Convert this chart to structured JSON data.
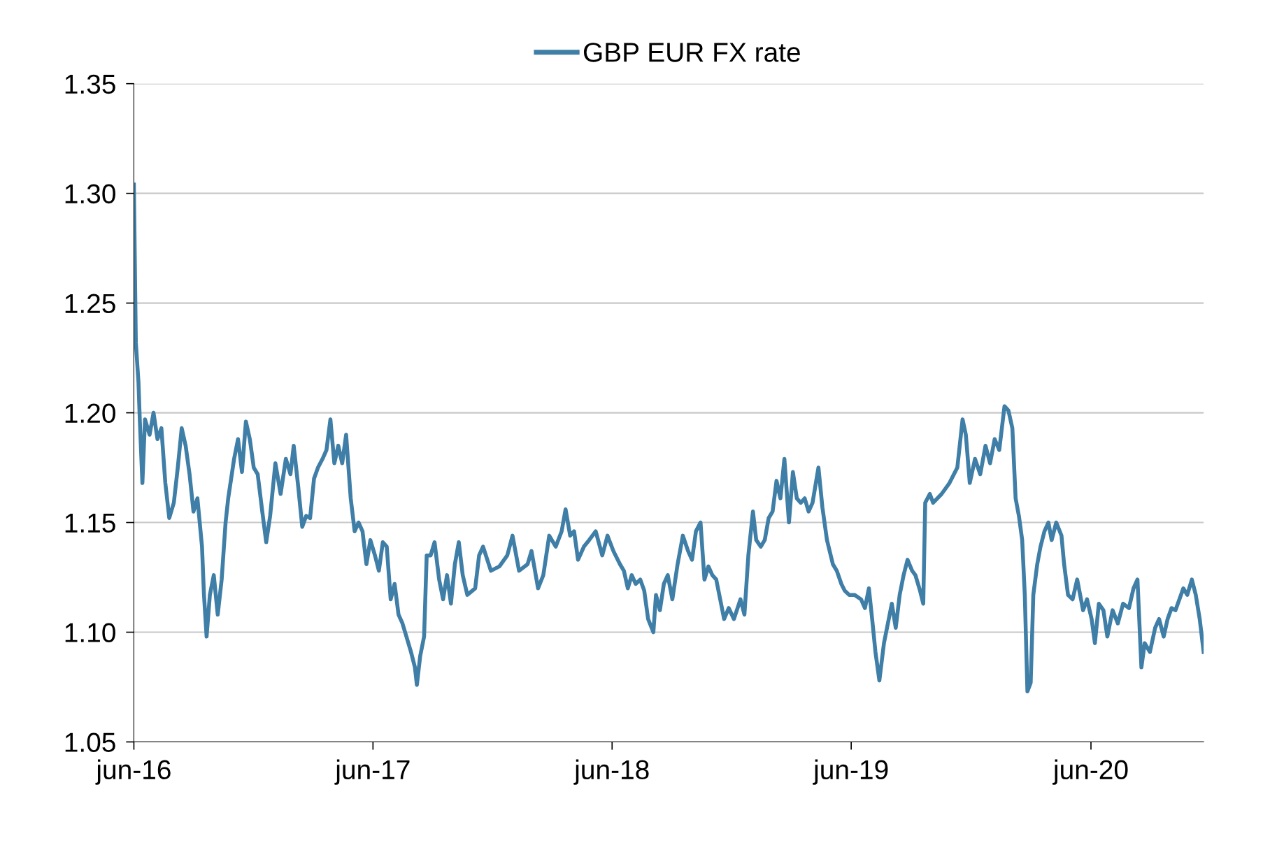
{
  "chart_data": {
    "type": "line",
    "legend": "top",
    "grid": "y",
    "marker": "none",
    "line_style": "solid",
    "xlim": [
      "2016-06-01",
      "2020-11-20"
    ],
    "ylim": [
      1.05,
      1.35
    ],
    "xticks": [
      {
        "value": "2016-06-01",
        "label": "jun-16"
      },
      {
        "value": "2017-06-01",
        "label": "jun-17"
      },
      {
        "value": "2018-06-01",
        "label": "jun-18"
      },
      {
        "value": "2019-06-01",
        "label": "jun-19"
      },
      {
        "value": "2020-06-01",
        "label": "jun-20"
      }
    ],
    "yticks": [
      {
        "value": 1.05,
        "label": "1.05"
      },
      {
        "value": 1.1,
        "label": "1.10"
      },
      {
        "value": 1.15,
        "label": "1.15"
      },
      {
        "value": 1.2,
        "label": "1.20"
      },
      {
        "value": 1.25,
        "label": "1.25"
      },
      {
        "value": 1.3,
        "label": "1.30"
      },
      {
        "value": 1.35,
        "label": "1.35"
      }
    ],
    "x": [
      "2016-06-01",
      "2016-06-04",
      "2016-06-08",
      "2016-06-10",
      "2016-06-14",
      "2016-06-18",
      "2016-06-25",
      "2016-07-01",
      "2016-07-07",
      "2016-07-13",
      "2016-07-19",
      "2016-07-25",
      "2016-08-01",
      "2016-08-07",
      "2016-08-13",
      "2016-08-19",
      "2016-08-25",
      "2016-08-31",
      "2016-09-06",
      "2016-09-13",
      "2016-09-16",
      "2016-09-20",
      "2016-09-25",
      "2016-10-01",
      "2016-10-07",
      "2016-10-13",
      "2016-10-19",
      "2016-10-23",
      "2016-11-01",
      "2016-11-07",
      "2016-11-13",
      "2016-11-19",
      "2016-11-25",
      "2016-12-01",
      "2016-12-07",
      "2016-12-14",
      "2016-12-20",
      "2016-12-26",
      "2017-01-03",
      "2017-01-11",
      "2017-01-19",
      "2017-01-26",
      "2017-01-31",
      "2017-02-07",
      "2017-02-13",
      "2017-02-19",
      "2017-02-25",
      "2017-03-03",
      "2017-03-09",
      "2017-03-16",
      "2017-03-22",
      "2017-03-28",
      "2017-04-03",
      "2017-04-09",
      "2017-04-15",
      "2017-04-21",
      "2017-04-28",
      "2017-05-04",
      "2017-05-10",
      "2017-05-16",
      "2017-05-22",
      "2017-05-28",
      "2017-06-04",
      "2017-06-10",
      "2017-06-16",
      "2017-06-22",
      "2017-06-28",
      "2017-07-04",
      "2017-07-10",
      "2017-07-16",
      "2017-07-22",
      "2017-07-29",
      "2017-08-04",
      "2017-08-07",
      "2017-08-12",
      "2017-08-18",
      "2017-08-22",
      "2017-08-28",
      "2017-09-03",
      "2017-09-10",
      "2017-09-16",
      "2017-09-22",
      "2017-09-28",
      "2017-10-04",
      "2017-10-10",
      "2017-10-16",
      "2017-10-23",
      "2017-11-04",
      "2017-11-10",
      "2017-11-16",
      "2017-11-28",
      "2017-12-11",
      "2017-12-23",
      "2017-12-31",
      "2018-01-10",
      "2018-01-23",
      "2018-01-29",
      "2018-02-08",
      "2018-02-16",
      "2018-02-25",
      "2018-03-07",
      "2018-03-16",
      "2018-03-22",
      "2018-03-29",
      "2018-04-04",
      "2018-04-10",
      "2018-04-19",
      "2018-04-27",
      "2018-05-07",
      "2018-05-17",
      "2018-05-25",
      "2018-06-03",
      "2018-06-13",
      "2018-06-19",
      "2018-06-25",
      "2018-07-01",
      "2018-07-07",
      "2018-07-14",
      "2018-07-20",
      "2018-07-26",
      "2018-08-03",
      "2018-08-07",
      "2018-08-13",
      "2018-08-19",
      "2018-08-25",
      "2018-09-01",
      "2018-09-09",
      "2018-09-17",
      "2018-09-25",
      "2018-10-01",
      "2018-10-07",
      "2018-10-14",
      "2018-10-20",
      "2018-10-26",
      "2018-11-01",
      "2018-11-07",
      "2018-11-13",
      "2018-11-19",
      "2018-11-26",
      "2018-12-04",
      "2018-12-14",
      "2018-12-20",
      "2018-12-26",
      "2019-01-02",
      "2019-01-07",
      "2019-01-14",
      "2019-01-20",
      "2019-01-26",
      "2019-02-01",
      "2019-02-07",
      "2019-02-13",
      "2019-02-19",
      "2019-02-26",
      "2019-03-04",
      "2019-03-10",
      "2019-03-16",
      "2019-03-22",
      "2019-03-28",
      "2019-04-03",
      "2019-04-12",
      "2019-04-18",
      "2019-04-25",
      "2019-05-04",
      "2019-05-10",
      "2019-05-17",
      "2019-05-22",
      "2019-05-29",
      "2019-06-06",
      "2019-06-16",
      "2019-06-22",
      "2019-06-28",
      "2019-07-03",
      "2019-07-08",
      "2019-07-14",
      "2019-07-21",
      "2019-07-27",
      "2019-08-02",
      "2019-08-08",
      "2019-08-14",
      "2019-08-20",
      "2019-08-26",
      "2019-09-02",
      "2019-09-07",
      "2019-09-14",
      "2019-09-19",
      "2019-09-22",
      "2019-09-29",
      "2019-10-04",
      "2019-10-17",
      "2019-10-29",
      "2019-11-10",
      "2019-11-18",
      "2019-11-23",
      "2019-11-29",
      "2019-12-07",
      "2019-12-15",
      "2019-12-23",
      "2019-12-30",
      "2020-01-06",
      "2020-01-13",
      "2020-01-21",
      "2020-01-27",
      "2020-02-02",
      "2020-02-07",
      "2020-02-12",
      "2020-02-17",
      "2020-02-21",
      "2020-02-25",
      "2020-03-01",
      "2020-03-05",
      "2020-03-11",
      "2020-03-16",
      "2020-03-22",
      "2020-03-28",
      "2020-04-02",
      "2020-04-09",
      "2020-04-17",
      "2020-04-21",
      "2020-04-27",
      "2020-05-04",
      "2020-05-11",
      "2020-05-20",
      "2020-05-26",
      "2020-06-02",
      "2020-06-07",
      "2020-06-13",
      "2020-06-20",
      "2020-06-26",
      "2020-07-04",
      "2020-07-12",
      "2020-07-20",
      "2020-07-29",
      "2020-08-05",
      "2020-08-11",
      "2020-08-17",
      "2020-08-22",
      "2020-08-30",
      "2020-09-07",
      "2020-09-13",
      "2020-09-20",
      "2020-09-26",
      "2020-10-02",
      "2020-10-08",
      "2020-10-14",
      "2020-10-20",
      "2020-10-26",
      "2020-11-02",
      "2020-11-08",
      "2020-11-14",
      "2020-11-20"
    ],
    "series": [
      {
        "name": "GBP EUR FX rate",
        "color": "#3f7ea6",
        "values": [
          1.304,
          1.232,
          1.214,
          1.197,
          1.168,
          1.197,
          1.19,
          1.2,
          1.188,
          1.193,
          1.168,
          1.152,
          1.159,
          1.175,
          1.193,
          1.185,
          1.172,
          1.155,
          1.161,
          1.139,
          1.117,
          1.098,
          1.117,
          1.126,
          1.108,
          1.124,
          1.15,
          1.161,
          1.179,
          1.188,
          1.173,
          1.196,
          1.188,
          1.175,
          1.172,
          1.155,
          1.141,
          1.153,
          1.177,
          1.163,
          1.179,
          1.172,
          1.185,
          1.166,
          1.148,
          1.153,
          1.152,
          1.17,
          1.175,
          1.179,
          1.183,
          1.197,
          1.177,
          1.185,
          1.177,
          1.19,
          1.161,
          1.146,
          1.15,
          1.146,
          1.131,
          1.142,
          1.135,
          1.128,
          1.141,
          1.139,
          1.115,
          1.122,
          1.108,
          1.104,
          1.098,
          1.091,
          1.084,
          1.076,
          1.089,
          1.098,
          1.135,
          1.135,
          1.141,
          1.124,
          1.115,
          1.126,
          1.113,
          1.131,
          1.141,
          1.126,
          1.117,
          1.12,
          1.135,
          1.139,
          1.128,
          1.13,
          1.135,
          1.144,
          1.128,
          1.131,
          1.137,
          1.12,
          1.126,
          1.144,
          1.139,
          1.146,
          1.156,
          1.144,
          1.146,
          1.133,
          1.139,
          1.142,
          1.146,
          1.135,
          1.144,
          1.137,
          1.131,
          1.128,
          1.12,
          1.126,
          1.122,
          1.124,
          1.119,
          1.106,
          1.1,
          1.117,
          1.11,
          1.122,
          1.126,
          1.115,
          1.131,
          1.144,
          1.137,
          1.133,
          1.146,
          1.15,
          1.124,
          1.13,
          1.126,
          1.124,
          1.115,
          1.106,
          1.111,
          1.106,
          1.115,
          1.108,
          1.135,
          1.155,
          1.142,
          1.139,
          1.142,
          1.152,
          1.155,
          1.169,
          1.161,
          1.179,
          1.15,
          1.173,
          1.161,
          1.159,
          1.161,
          1.155,
          1.159,
          1.175,
          1.157,
          1.142,
          1.131,
          1.128,
          1.122,
          1.119,
          1.117,
          1.117,
          1.115,
          1.111,
          1.12,
          1.106,
          1.091,
          1.078,
          1.095,
          1.104,
          1.113,
          1.102,
          1.117,
          1.126,
          1.133,
          1.128,
          1.126,
          1.119,
          1.113,
          1.159,
          1.163,
          1.159,
          1.163,
          1.168,
          1.175,
          1.197,
          1.19,
          1.168,
          1.179,
          1.172,
          1.185,
          1.177,
          1.188,
          1.183,
          1.203,
          1.201,
          1.193,
          1.161,
          1.153,
          1.142,
          1.117,
          1.073,
          1.077,
          1.117,
          1.131,
          1.139,
          1.146,
          1.15,
          1.142,
          1.15,
          1.144,
          1.131,
          1.117,
          1.115,
          1.124,
          1.11,
          1.115,
          1.106,
          1.095,
          1.113,
          1.11,
          1.098,
          1.11,
          1.104,
          1.113,
          1.111,
          1.12,
          1.124,
          1.084,
          1.095,
          1.091,
          1.102,
          1.106,
          1.098,
          1.106,
          1.111,
          1.11,
          1.115,
          1.12,
          1.117,
          1.124,
          1.117,
          1.106,
          1.091
        ]
      }
    ]
  }
}
